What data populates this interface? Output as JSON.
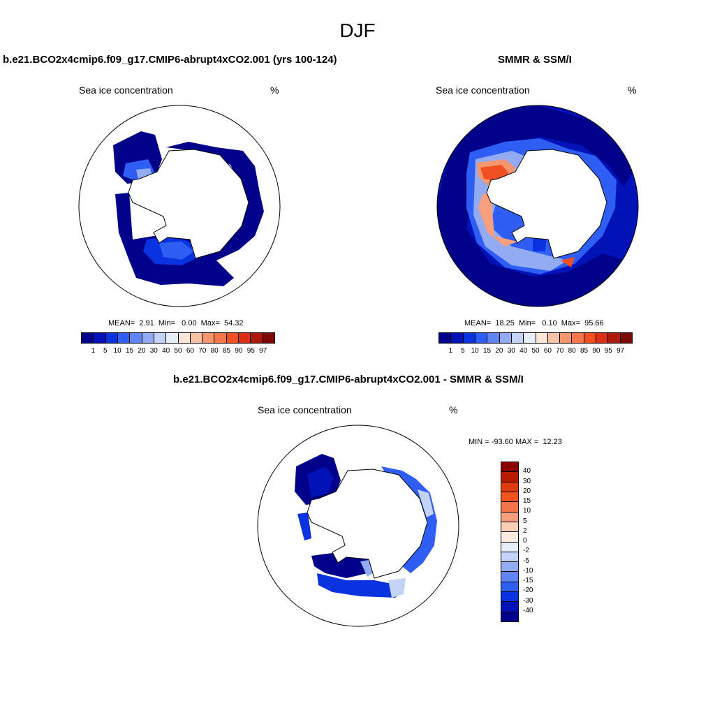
{
  "figure": {
    "title": "DJF"
  },
  "panels": [
    {
      "title": "b.e21.BCO2x4cmip6.f09_g17.CMIP6-abrupt4xCO2.001 (yrs 100-124)",
      "left_label": "Sea ice concentration",
      "right_label": "%",
      "stats": "MEAN=  2.91  Min=   0.00  Max=  54.32"
    },
    {
      "title": "SMMR & SSM/I",
      "left_label": "Sea ice concentration",
      "right_label": "%",
      "stats": "MEAN=  18.25  Min=   0.10  Max=  95.66"
    },
    {
      "title": "b.e21.BCO2x4cmip6.f09_g17.CMIP6-abrupt4xCO2.001 - SMMR & SSM/I",
      "left_label": "Sea ice concentration",
      "right_label": "%",
      "stats": "MIN = -93.60 MAX =  12.23"
    }
  ],
  "colorbar_abs": {
    "labels": [
      "1",
      "5",
      "10",
      "15",
      "20",
      "30",
      "40",
      "50",
      "60",
      "70",
      "80",
      "85",
      "90",
      "95",
      "97"
    ],
    "colors": [
      "#00008b",
      "#0012b8",
      "#0a33e0",
      "#2f5ef5",
      "#5f85f5",
      "#92abf2",
      "#c3d3f5",
      "#e6eef9",
      "#fde7d8",
      "#f9c1a5",
      "#f6966f",
      "#f4774e",
      "#f14e22",
      "#dc3014",
      "#ad1a0c",
      "#7c0800"
    ]
  },
  "colorbar_diff": {
    "labels": [
      "40",
      "30",
      "20",
      "15",
      "10",
      "5",
      "2",
      "0",
      "-2",
      "-5",
      "-10",
      "-15",
      "-20",
      "-30",
      "-40"
    ],
    "colors": [
      "#8b0000",
      "#b81a00",
      "#e03a10",
      "#f4521e",
      "#f6744a",
      "#f8a07e",
      "#fbcfb6",
      "#fdebe1",
      "#e6eef9",
      "#c3d3f5",
      "#92abf2",
      "#5f85f5",
      "#2f5ef5",
      "#0a33e0",
      "#0012b8",
      "#00008b"
    ]
  }
}
